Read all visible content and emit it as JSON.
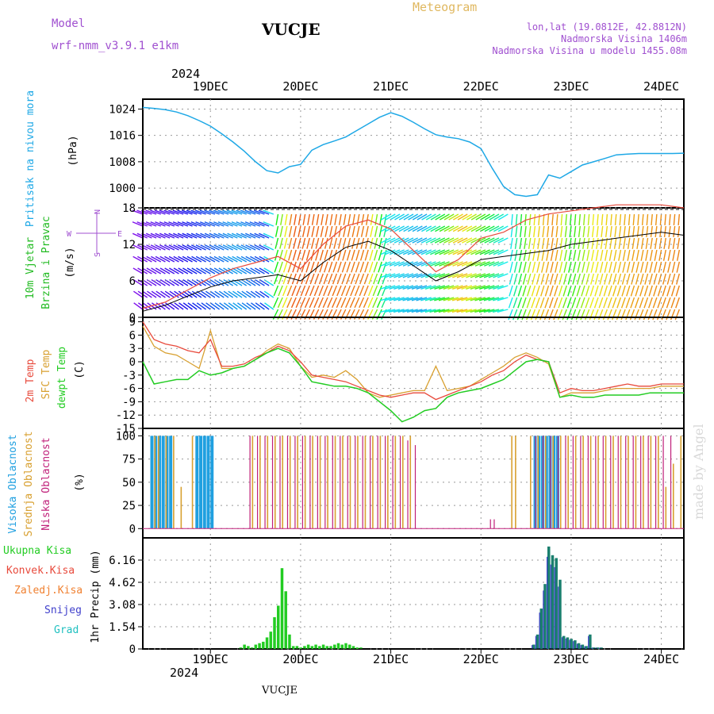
{
  "header": {
    "model_label": "Model",
    "model_name": "wrf-nmm_v3.9.1 e1km",
    "station": "VUCJE",
    "title": "Meteogram",
    "coords": "lon,lat (19.0812E, 42.8812N)",
    "altitude": "Nadmorska Visina 1406m",
    "model_altitude": "Nadmorska Visina u modelu 1455.08m",
    "footer_station": "VUCJE",
    "credit": "made by Angel"
  },
  "colors": {
    "pressure": "#1ea8e6",
    "wind_green": "#22bb22",
    "wind_purple": "#a050d0",
    "temp2m": "#e84a3c",
    "sfc": "#d8a030",
    "dewpt": "#22cc22",
    "cloud_high": "#20a0e0",
    "cloud_mid": "#d8a030",
    "cloud_low": "#c0207a",
    "precip_total": "#22cc22",
    "precip_conv": "#e84a3c",
    "precip_frozen": "#f08030",
    "precip_snow": "#4040cc",
    "precip_hail": "#20c0c0",
    "grid": "#999999",
    "title_gold": "#e0b860"
  },
  "time_axis": {
    "year_top": "2024",
    "year_bottom": "2024",
    "day_labels": [
      "19DEC",
      "20DEC",
      "21DEC",
      "22DEC",
      "23DEC",
      "24DEC"
    ],
    "start_hour": 0,
    "end_hour": 144
  },
  "chart_data": [
    {
      "type": "line",
      "name": "pressure",
      "ylabel_main": "Pritisak na nivou mora",
      "ylabel_unit": "(hPa)",
      "ylim": [
        994,
        1027
      ],
      "yticks": [
        1000,
        1008,
        1016,
        1024
      ],
      "x": [
        0,
        3,
        6,
        9,
        12,
        15,
        18,
        21,
        24,
        27,
        30,
        33,
        36,
        39,
        42,
        45,
        48,
        51,
        54,
        57,
        60,
        63,
        66,
        69,
        72,
        75,
        78,
        81,
        84,
        87,
        90,
        93,
        96,
        99,
        102,
        105,
        108,
        111,
        114,
        117,
        120,
        123,
        126,
        129,
        132,
        135,
        138,
        141,
        144
      ],
      "values": [
        1024.5,
        1024.2,
        1023.8,
        1023.1,
        1022.0,
        1020.5,
        1018.8,
        1016.5,
        1014.0,
        1011.2,
        1008.0,
        1005.3,
        1004.6,
        1006.5,
        1007.2,
        1011.5,
        1013.2,
        1014.3,
        1015.5,
        1017.5,
        1019.5,
        1021.5,
        1022.9,
        1021.8,
        1020.0,
        1018.0,
        1016.2,
        1015.5,
        1015.0,
        1014.0,
        1012.0,
        1006.0,
        1000.5,
        998.0,
        997.5,
        998.0,
        1004.0,
        1003.0,
        1005.0,
        1007.0,
        1008.0,
        1009.0,
        1010.1,
        1010.3,
        1010.5,
        1010.5,
        1010.5,
        1010.5,
        1010.6
      ]
    },
    {
      "type": "line",
      "name": "wind",
      "ylabel_main": "10m Vjetar",
      "ylabel_sub": "Brzina i Pravac",
      "ylabel_unit": "(m/s)",
      "compass": "N",
      "compass_w": "W",
      "compass_e": "E",
      "compass_s": "S",
      "ylim": [
        0,
        18
      ],
      "yticks": [
        0,
        6,
        12,
        18
      ],
      "x": [
        0,
        6,
        12,
        18,
        24,
        30,
        36,
        42,
        48,
        54,
        60,
        66,
        72,
        78,
        84,
        90,
        96,
        102,
        108,
        114,
        120,
        126,
        132,
        138,
        144
      ],
      "speed": [
        1.0,
        2.0,
        3.5,
        5.0,
        6.0,
        6.5,
        7.0,
        6.0,
        9.0,
        11.5,
        12.5,
        11.0,
        8.5,
        6.0,
        7.5,
        9.5,
        10.0,
        10.5,
        11.0,
        12.0,
        12.5,
        13.0,
        13.5,
        14.0,
        13.5
      ],
      "gust": [
        1.5,
        2.5,
        4.5,
        6.5,
        8.0,
        9.0,
        10.0,
        8.0,
        12.0,
        15.0,
        16.0,
        14.5,
        11.0,
        7.5,
        9.5,
        13.0,
        14.0,
        16.0,
        17.0,
        17.5,
        18.0,
        18.5,
        18.5,
        18.5,
        18.0
      ]
    },
    {
      "type": "line",
      "name": "temperature",
      "ylabel_a": "2m Temp",
      "ylabel_b": "SFC Temp",
      "ylabel_c": "dewpt Temp",
      "ylabel_unit": "(C)",
      "ylim": [
        -15,
        10
      ],
      "yticks": [
        -15,
        -12,
        -9,
        -6,
        -3,
        0,
        3,
        6,
        9
      ],
      "x": [
        0,
        3,
        6,
        9,
        12,
        15,
        18,
        21,
        24,
        27,
        30,
        33,
        36,
        39,
        42,
        45,
        48,
        51,
        54,
        57,
        60,
        63,
        66,
        69,
        72,
        75,
        78,
        81,
        84,
        87,
        90,
        93,
        96,
        99,
        102,
        105,
        108,
        111,
        114,
        117,
        120,
        123,
        126,
        129,
        132,
        135,
        138,
        141,
        144
      ],
      "temp2m": [
        9.0,
        5.0,
        4.0,
        3.5,
        2.5,
        2.0,
        5.0,
        -1.0,
        -1.0,
        -0.5,
        1.0,
        2.0,
        3.5,
        2.5,
        0.0,
        -3.0,
        -3.5,
        -4.0,
        -4.5,
        -5.5,
        -6.5,
        -7.5,
        -8.0,
        -7.5,
        -7.0,
        -7.0,
        -8.5,
        -7.5,
        -6.5,
        -5.5,
        -4.5,
        -3.0,
        -2.0,
        0.0,
        1.5,
        0.5,
        0.0,
        -7.0,
        -6.0,
        -6.5,
        -6.5,
        -6.0,
        -5.5,
        -5.0,
        -5.5,
        -5.5,
        -5.0,
        -5.0,
        -5.0
      ],
      "sfc": [
        8.0,
        3.5,
        2.0,
        1.5,
        0.0,
        -1.5,
        7.0,
        -1.5,
        -1.5,
        -1.0,
        0.5,
        2.5,
        4.0,
        3.0,
        -1.0,
        -3.5,
        -3.0,
        -3.5,
        -2.0,
        -4.0,
        -7.0,
        -8.0,
        -7.5,
        -7.0,
        -6.5,
        -6.5,
        -1.0,
        -6.5,
        -6.0,
        -5.5,
        -4.0,
        -2.5,
        -1.0,
        1.0,
        2.0,
        1.0,
        -0.5,
        -8.0,
        -7.0,
        -7.0,
        -7.0,
        -6.5,
        -6.0,
        -6.0,
        -6.0,
        -6.0,
        -5.5,
        -5.5,
        -5.5
      ],
      "dewpt": [
        0.0,
        -5.0,
        -4.5,
        -4.0,
        -4.0,
        -2.0,
        -3.0,
        -2.5,
        -1.5,
        -1.0,
        0.5,
        2.0,
        3.0,
        2.0,
        -1.0,
        -4.5,
        -5.0,
        -5.5,
        -5.5,
        -6.0,
        -7.0,
        -9.0,
        -11.0,
        -13.5,
        -12.5,
        -11.0,
        -10.5,
        -8.0,
        -7.0,
        -6.5,
        -6.0,
        -5.0,
        -4.0,
        -2.0,
        0.0,
        0.5,
        0.0,
        -8.0,
        -7.5,
        -8.0,
        -8.0,
        -7.5,
        -7.5,
        -7.5,
        -7.5,
        -7.0,
        -7.0,
        -7.0,
        -7.0
      ]
    },
    {
      "type": "bar",
      "name": "clouds",
      "ylabel_a": "Visoka Oblacnost",
      "ylabel_b": "Srednja Oblacnost",
      "ylabel_c": "Niska Oblacnost",
      "ylabel_unit": "(%)",
      "ylim": [
        0,
        100
      ],
      "yticks": [
        0,
        25,
        50,
        75,
        100
      ],
      "high_hours": [
        2,
        3,
        4,
        5,
        6,
        7,
        14,
        15,
        16,
        17,
        18,
        104,
        105,
        106,
        107,
        108,
        109,
        110
      ],
      "mid_hours": [
        3,
        4,
        6,
        8,
        10,
        13,
        29,
        31,
        33,
        35,
        37,
        39,
        41,
        43,
        45,
        47,
        49,
        51,
        53,
        55,
        57,
        59,
        61,
        63,
        65,
        67,
        69,
        71,
        98,
        99,
        103,
        105,
        107,
        109,
        111,
        113,
        115,
        117,
        119,
        121,
        123,
        125,
        127,
        129,
        131,
        133,
        135,
        137,
        139,
        141,
        143
      ],
      "mid_values": [
        100,
        100,
        100,
        100,
        45,
        100,
        100,
        100,
        100,
        100,
        100,
        100,
        100,
        100,
        100,
        100,
        100,
        100,
        100,
        100,
        100,
        100,
        100,
        100,
        100,
        100,
        100,
        100,
        100,
        100,
        100,
        100,
        100,
        100,
        100,
        100,
        100,
        100,
        100,
        100,
        100,
        100,
        100,
        100,
        100,
        100,
        100,
        100,
        45,
        70,
        100
      ],
      "low_hours": [
        28,
        30,
        32,
        34,
        36,
        38,
        40,
        42,
        44,
        46,
        48,
        50,
        52,
        54,
        56,
        58,
        60,
        62,
        64,
        66,
        68,
        70,
        72,
        92,
        93,
        104,
        106,
        108,
        110,
        112,
        114,
        116,
        118,
        120,
        122,
        124,
        126,
        128,
        130,
        132,
        134,
        136,
        138,
        140
      ],
      "low_values": [
        100,
        100,
        100,
        100,
        100,
        100,
        100,
        100,
        100,
        100,
        100,
        100,
        100,
        100,
        100,
        100,
        100,
        100,
        100,
        100,
        100,
        95,
        90,
        10,
        10,
        100,
        100,
        100,
        100,
        100,
        100,
        100,
        100,
        100,
        100,
        100,
        100,
        100,
        100,
        100,
        100,
        100,
        100,
        100
      ]
    },
    {
      "type": "bar",
      "name": "precipitation",
      "ylabel_a": "Ukupna Kisa",
      "ylabel_b": "Konvek.Kisa",
      "ylabel_c": "Zaledj.Kisa",
      "ylabel_d": "Snijeg",
      "ylabel_e": "Grad",
      "ylabel_unit": "1hr Precip (mm)",
      "ylim": [
        0,
        7.7
      ],
      "yticks": [
        0,
        1.54,
        3.08,
        4.62,
        6.16
      ],
      "ytick_labels": [
        "0",
        "1.54",
        "3.08",
        "4.62",
        "6.16"
      ],
      "rain_hours": [
        26,
        27,
        28,
        29,
        30,
        31,
        32,
        33,
        34,
        35,
        36,
        37,
        38,
        39,
        40,
        41,
        42,
        43,
        44,
        45,
        46,
        47,
        48,
        49,
        50,
        51,
        52,
        53,
        54,
        55,
        56,
        57,
        58
      ],
      "rain_values": [
        0.1,
        0.3,
        0.2,
        0.1,
        0.3,
        0.4,
        0.5,
        0.8,
        1.2,
        2.2,
        3.0,
        5.6,
        4.0,
        1.0,
        0.2,
        0.2,
        0.1,
        0.2,
        0.3,
        0.2,
        0.3,
        0.2,
        0.3,
        0.2,
        0.2,
        0.3,
        0.4,
        0.3,
        0.4,
        0.3,
        0.2,
        0.1,
        0.1
      ],
      "snow_hours": [
        104,
        105,
        106,
        107,
        108,
        109,
        110,
        111,
        112,
        113,
        114,
        115,
        116,
        117,
        118,
        119,
        120,
        121,
        122
      ],
      "snow_values": [
        0.3,
        1.0,
        2.8,
        4.5,
        7.1,
        6.5,
        6.3,
        4.8,
        0.9,
        0.8,
        0.7,
        0.6,
        0.4,
        0.3,
        0.2,
        1.0,
        0.1,
        0.1,
        0.1
      ]
    }
  ]
}
